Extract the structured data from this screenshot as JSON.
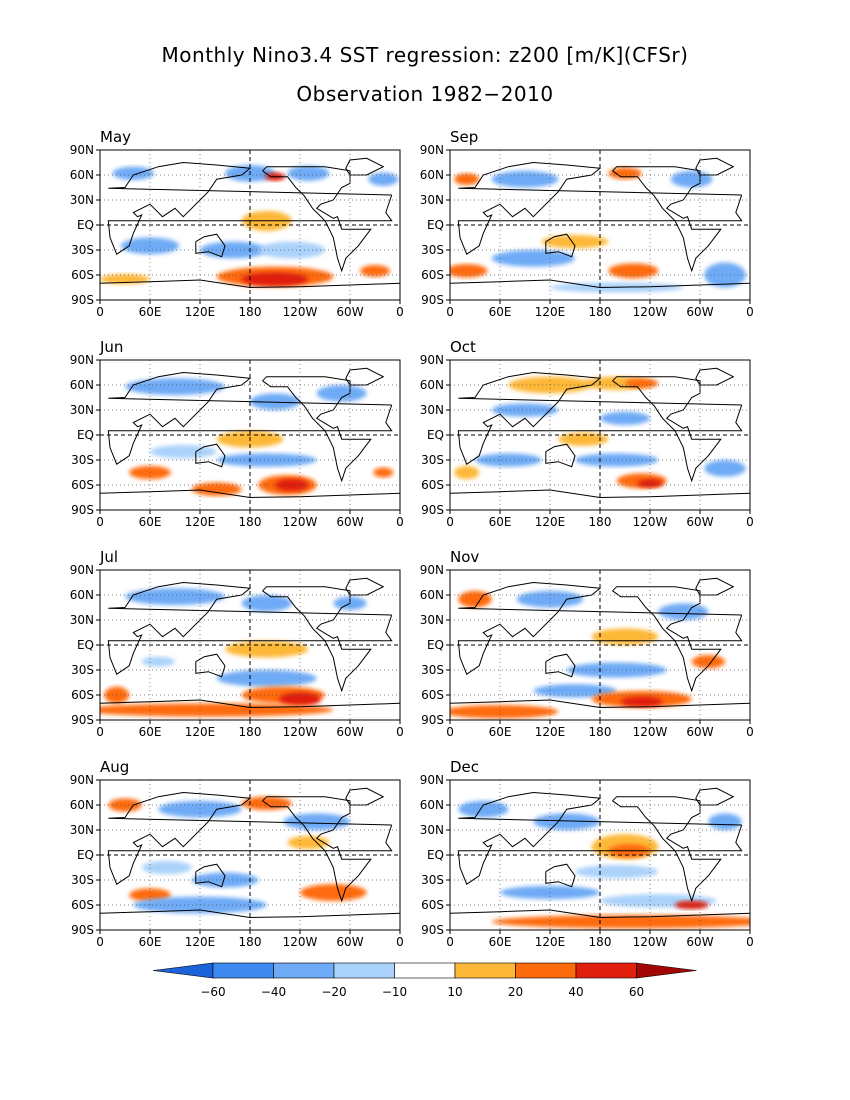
{
  "title": {
    "line1": "Monthly Nino3.4 SST regression: z200 [m/K](CFSr)",
    "line2": "Observation 1982−2010"
  },
  "axes": {
    "lat_labels": [
      "90N",
      "60N",
      "30N",
      "EQ",
      "30S",
      "60S",
      "90S"
    ],
    "lon_labels": [
      "0",
      "60E",
      "120E",
      "180",
      "120W",
      "60W",
      "0"
    ]
  },
  "panels": [
    {
      "id": "may",
      "label": "May",
      "column": 0,
      "row": 0
    },
    {
      "id": "sep",
      "label": "Sep",
      "column": 1,
      "row": 0
    },
    {
      "id": "jun",
      "label": "Jun",
      "column": 0,
      "row": 1
    },
    {
      "id": "oct",
      "label": "Oct",
      "column": 1,
      "row": 1
    },
    {
      "id": "jul",
      "label": "Jul",
      "column": 0,
      "row": 2
    },
    {
      "id": "nov",
      "label": "Nov",
      "column": 1,
      "row": 2
    },
    {
      "id": "aug",
      "label": "Aug",
      "column": 0,
      "row": 3
    },
    {
      "id": "dec",
      "label": "Dec",
      "column": 1,
      "row": 3
    }
  ],
  "colorbar": {
    "labels": [
      "−60",
      "−40",
      "−20",
      "−10",
      "10",
      "20",
      "40",
      "60"
    ],
    "colors": [
      "#1c62d8",
      "#3e8af0",
      "#6eaaf5",
      "#aad2fa",
      "#ffffff",
      "#fdb837",
      "#fe6b0c",
      "#e01f0d",
      "#a20706"
    ]
  },
  "colors": {
    "land_outline": "#000000",
    "grid_dotted": "#555555",
    "dashed_lines": "#000000"
  }
}
